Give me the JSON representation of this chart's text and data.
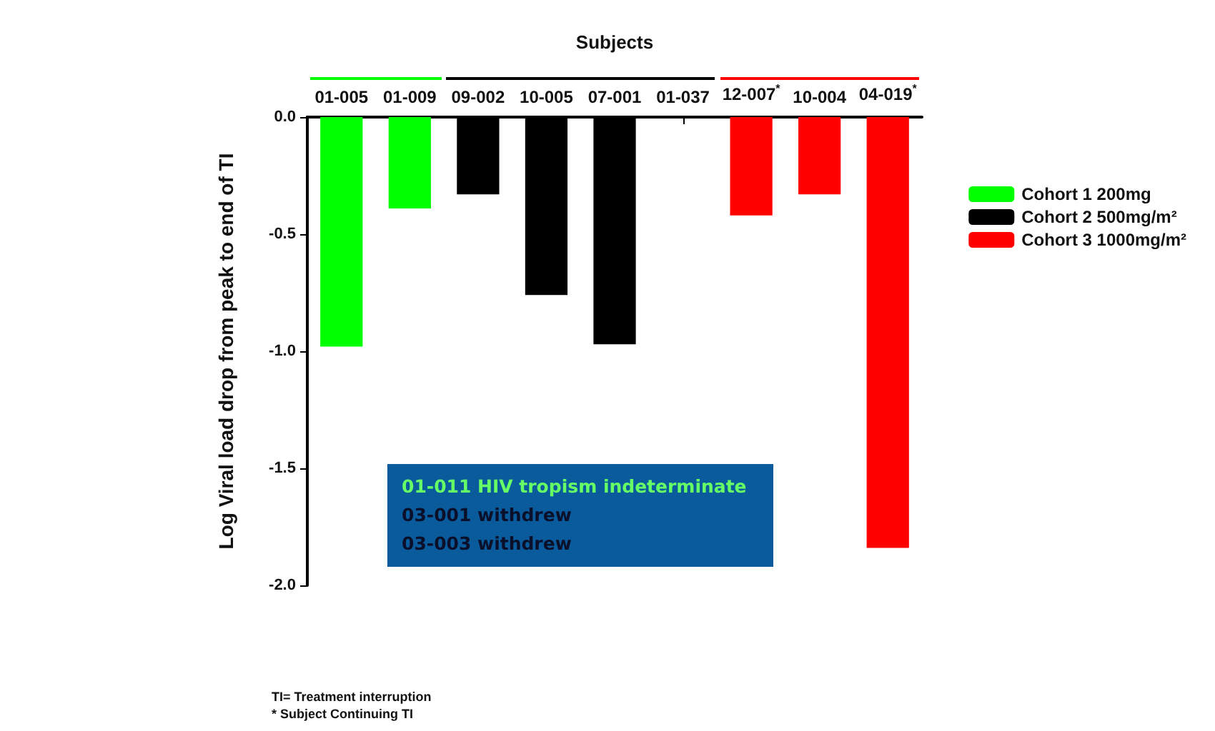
{
  "chart_data": {
    "type": "bar",
    "xlabel": "Subjects",
    "ylabel": "Log Viral load drop from peak to end of TI",
    "categories": [
      "01-005",
      "01-009",
      "09-002",
      "10-005",
      "07-001",
      "01-037",
      "12-007$^{*}$",
      "10-004",
      "04-019$^{*}$"
    ],
    "series": [
      {
        "name": "Cohort 1 200mg",
        "color": "#00ff00",
        "values": [
          -0.98,
          -0.39,
          null,
          null,
          null,
          null,
          null,
          null,
          null
        ]
      },
      {
        "name": "Cohort 2 500mg/m²",
        "color": "#000000",
        "values": [
          null,
          null,
          -0.33,
          -0.76,
          -0.97,
          0,
          null,
          null,
          null
        ]
      },
      {
        "name": "Cohort 3 1000mg/m²",
        "color": "#ff0000",
        "values": [
          null,
          null,
          null,
          null,
          null,
          null,
          -0.42,
          -0.33,
          -1.84
        ]
      }
    ],
    "stacked": true,
    "ylim": [
      -2.0,
      0.0
    ],
    "yticks": [
      {
        "value": 0,
        "label": "0.0"
      },
      {
        "value": -0.5,
        "label": "-0.5"
      },
      {
        "value": -1,
        "label": "-1.0"
      },
      {
        "value": -1.5,
        "label": "-1.5"
      },
      {
        "value": -2,
        "label": "-2.0"
      }
    ],
    "grid": false,
    "legend": "right",
    "annotations": [
      "01-011 HIV tropism indeterminate",
      "03-001 withdrew",
      "03-003 withdrew",
      "TI= Treatment interruption",
      "* Subject Continuing TI"
    ]
  }
}
